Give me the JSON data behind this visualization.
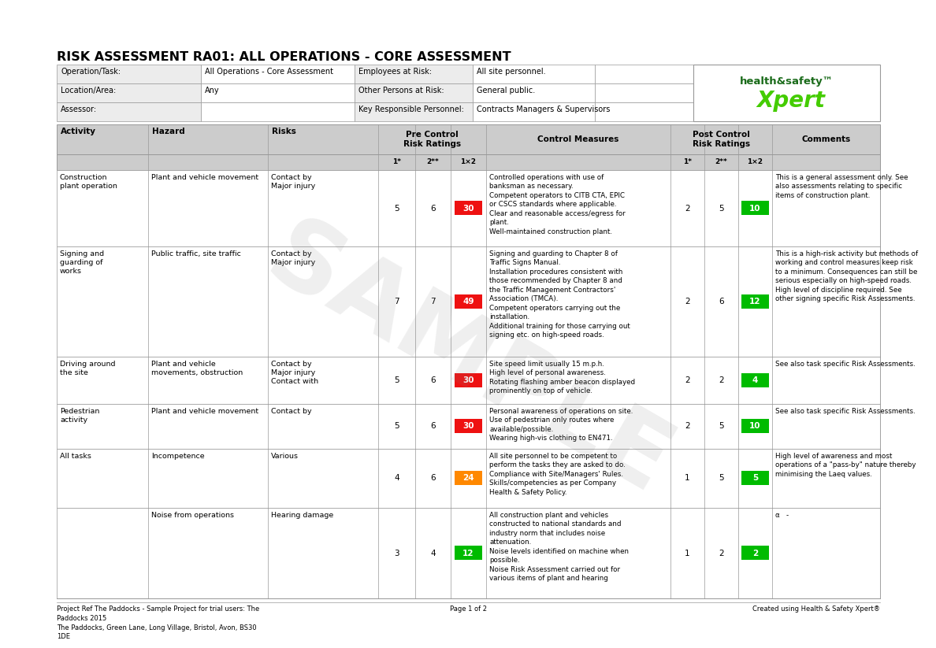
{
  "title": "RISK ASSESSMENT RA01: ALL OPERATIONS - CORE ASSESSMENT",
  "header_info": [
    [
      "Operation/Task:",
      "All Operations - Core Assessment",
      "Employees at Risk:",
      "All site personnel."
    ],
    [
      "Location/Area:",
      "Any",
      "Other Persons at Risk:",
      "General public."
    ],
    [
      "Assessor:",
      "",
      "Key Responsible Personnel:",
      "Contracts Managers & Supervisors"
    ]
  ],
  "rows": [
    {
      "activity": "Construction\nplant operation",
      "hazard": "Plant and vehicle movement",
      "risks": "Contact by\nMajor injury",
      "pre1": "5",
      "pre2": "6",
      "pre12": "30",
      "pre12_color": "#EE1111",
      "control": "Controlled operations with use of\nbanksman as necessary.\nCompetent operators to CITB CTA, EPIC\nor CSCS standards where applicable.\nClear and reasonable access/egress for\nplant.\nWell-maintained construction plant.",
      "post1": "2",
      "post2": "5",
      "post12": "10",
      "post12_color": "#00BB00",
      "comments": "This is a general assessment only. See\nalso assessments relating to specific\nitems of construction plant."
    },
    {
      "activity": "Signing and\nguarding of\nworks",
      "hazard": "Public traffic, site traffic",
      "risks": "Contact by\nMajor injury",
      "pre1": "7",
      "pre2": "7",
      "pre12": "49",
      "pre12_color": "#EE1111",
      "control": "Signing and guarding to Chapter 8 of\nTraffic Signs Manual.\nInstallation procedures consistent with\nthose recommended by Chapter 8 and\nthe Traffic Management Contractors'\nAssociation (TMCA).\nCompetent operators carrying out the\ninstallation.\nAdditional training for those carrying out\nsigning etc. on high-speed roads.",
      "post1": "2",
      "post2": "6",
      "post12": "12",
      "post12_color": "#00BB00",
      "comments": "This is a high-risk activity but methods of\nworking and control measures keep risk\nto a minimum. Consequences can still be\nserious especially on high-speed roads.\nHigh level of discipline required. See\nother signing specific Risk Assessments."
    },
    {
      "activity": "Driving around\nthe site",
      "hazard": "Plant and vehicle\nmovements, obstruction",
      "risks": "Contact by\nMajor injury\nContact with",
      "pre1": "5",
      "pre2": "6",
      "pre12": "30",
      "pre12_color": "#EE1111",
      "control": "Site speed limit usually 15 m.p.h.\nHigh level of personal awareness.\nRotating flashing amber beacon displayed\nprominently on top of vehicle.",
      "post1": "2",
      "post2": "2",
      "post12": "4",
      "post12_color": "#00BB00",
      "comments": "See also task specific Risk Assessments."
    },
    {
      "activity": "Pedestrian\nactivity",
      "hazard": "Plant and vehicle movement",
      "risks": "Contact by",
      "pre1": "5",
      "pre2": "6",
      "pre12": "30",
      "pre12_color": "#EE1111",
      "control": "Personal awareness of operations on site.\nUse of pedestrian only routes where\navailable/possible.\nWearing high-vis clothing to EN471.",
      "post1": "2",
      "post2": "5",
      "post12": "10",
      "post12_color": "#00BB00",
      "comments": "See also task specific Risk Assessments."
    },
    {
      "activity": "All tasks",
      "hazard": "Incompetence",
      "risks": "Various",
      "pre1": "4",
      "pre2": "6",
      "pre12": "24",
      "pre12_color": "#FF8800",
      "control": "All site personnel to be competent to\nperform the tasks they are asked to do.\nCompliance with Site/Managers' Rules.\nSkills/competencies as per Company\nHealth & Safety Policy.",
      "post1": "1",
      "post2": "5",
      "post12": "5",
      "post12_color": "#00BB00",
      "comments": "High level of awareness and most\noperations of a \"pass-by\" nature thereby\nminimising the Laeq values."
    },
    {
      "activity": "",
      "hazard": "Noise from operations",
      "risks": "Hearing damage",
      "pre1": "3",
      "pre2": "4",
      "pre12": "12",
      "pre12_color": "#00BB00",
      "control": "All construction plant and vehicles\nconstructed to national standards and\nindustry norm that includes noise\nattenuation.\nNoise levels identified on machine when\npossible.\nNoise Risk Assessment carried out for\nvarious items of plant and hearing",
      "post1": "1",
      "post2": "2",
      "post12": "2",
      "post12_color": "#00BB00",
      "comments": "α   -"
    }
  ],
  "footer_left": "Project Ref The Paddocks - Sample Project for trial users: The\nPaddocks 2015\nThe Paddocks, Green Lane, Long Village, Bristol, Avon, BS30\n1DE",
  "footer_center": "Page 1 of 2",
  "footer_right": "Created using Health & Safety Xpert®",
  "watermark": "SAMPLE",
  "bg_color": "#FFFFFF",
  "header_bg": "#ECECEC",
  "table_header_bg": "#CCCCCC",
  "border_color": "#999999",
  "logo_dark_green": "#1A6B1A",
  "logo_bright_green": "#44CC00"
}
